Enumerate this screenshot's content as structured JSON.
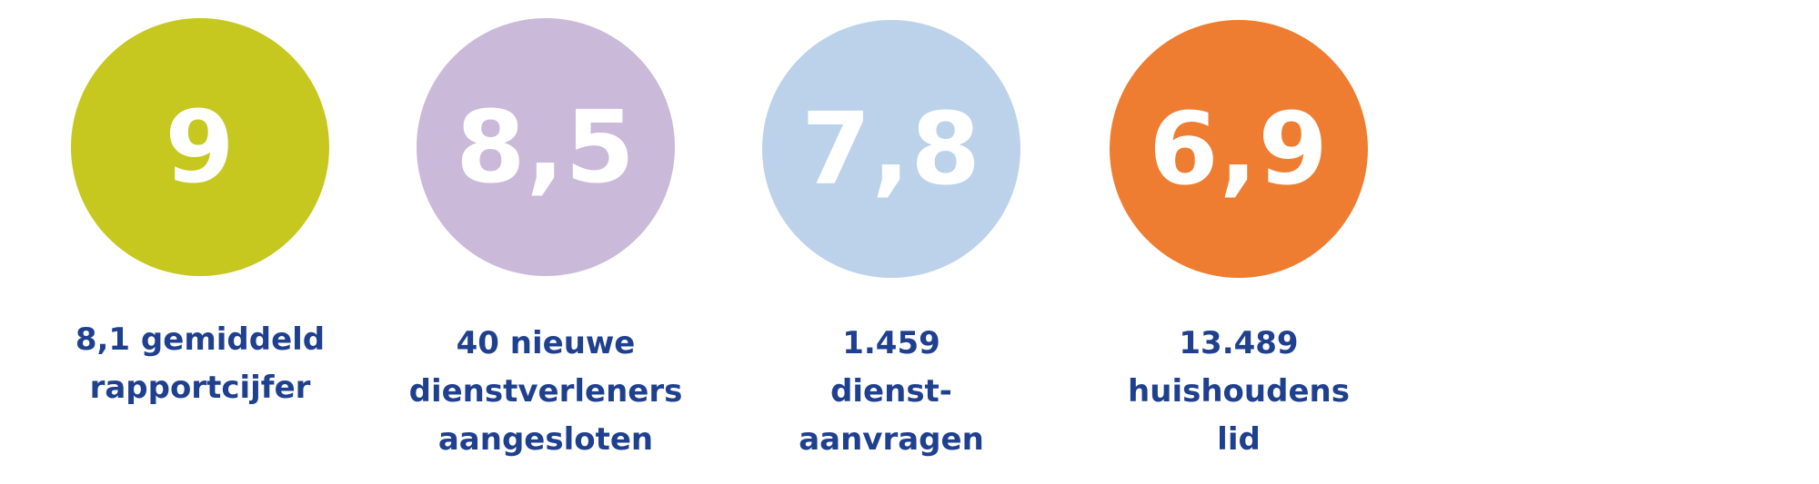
{
  "stats": [
    {
      "value": "9",
      "color": "#c6c71f",
      "caption_lines": [
        "8,1 gemiddeld",
        "rapportcijfer"
      ]
    },
    {
      "value": "8,5",
      "color": "#cbb9da",
      "caption_lines": [
        "40 nieuwe",
        "dienstverleners",
        "aangesloten"
      ]
    },
    {
      "value": "7,8",
      "color": "#bcd2ea",
      "caption_lines": [
        "1.459",
        "dienst-",
        "aanvragen"
      ]
    },
    {
      "value": "6,9",
      "color": "#ee7d32",
      "caption_lines": [
        "13.489",
        "huishoudens",
        "lid"
      ]
    }
  ],
  "caption_color": "#1f3f8f"
}
